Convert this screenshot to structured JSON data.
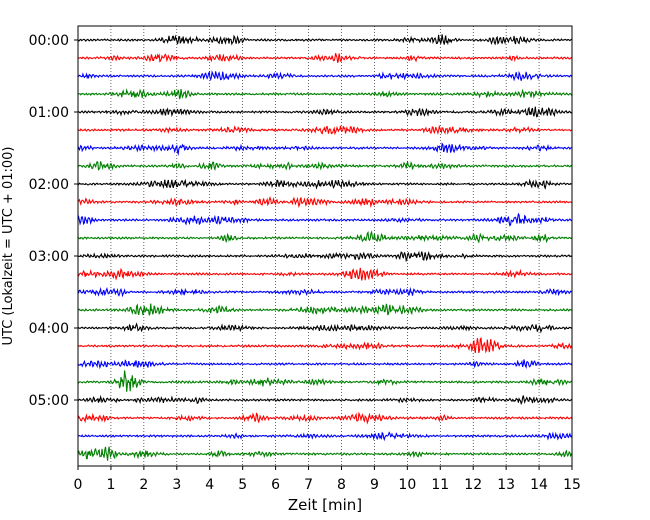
{
  "chart_data": {
    "type": "line",
    "title": "",
    "xlabel": "Zeit  [min]",
    "ylabel": "UTC (Lokalzeit = UTC + 01:00)",
    "xlim": [
      0,
      15
    ],
    "x_ticks": [
      "0",
      "1",
      "2",
      "3",
      "4",
      "5",
      "6",
      "7",
      "8",
      "9",
      "10",
      "11",
      "12",
      "13",
      "14",
      "15"
    ],
    "y_tick_labels": [
      "00:00",
      "01:00",
      "02:00",
      "03:00",
      "04:00",
      "05:00"
    ],
    "trace_interval_min": 15,
    "trace_count": 24,
    "trace_colors": [
      "#000000",
      "#ff0000",
      "#0000ff",
      "#008000"
    ],
    "grid": "vertical-dotted",
    "seismogram": "noise traces, one per 15 minutes"
  }
}
